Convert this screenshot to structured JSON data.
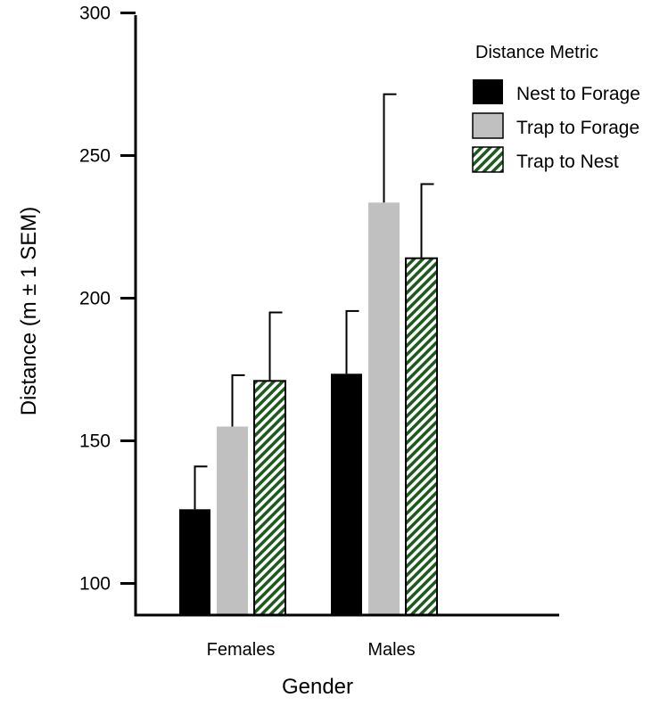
{
  "chart_data": {
    "type": "bar",
    "title": "",
    "xlabel": "Gender",
    "ylabel": "Distance (m ± 1 SEM)",
    "ylim": [
      89,
      300
    ],
    "yticks": [
      100,
      150,
      200,
      250,
      300
    ],
    "grid": false,
    "categories": [
      "Females",
      "Males"
    ],
    "legend": {
      "title": "Distance Metric",
      "position": "top-right"
    },
    "series": [
      {
        "name": "Nest to Forage",
        "values": [
          126,
          173.5
        ],
        "errors": [
          15,
          22
        ],
        "fill": "#000000",
        "pattern": "solid"
      },
      {
        "name": "Trap to Forage",
        "values": [
          155,
          233.5
        ],
        "errors": [
          18,
          38
        ],
        "fill": "#c0c0c0",
        "pattern": "solid"
      },
      {
        "name": "Trap to Nest",
        "values": [
          171,
          214
        ],
        "errors": [
          24,
          26
        ],
        "fill": "#1e5a1e",
        "pattern": "diagonal-hatch"
      }
    ]
  }
}
